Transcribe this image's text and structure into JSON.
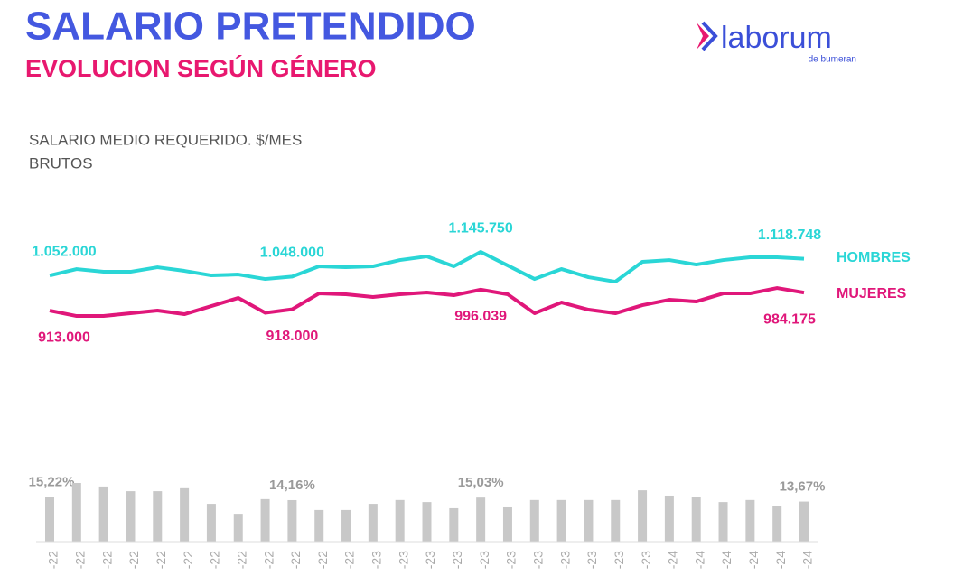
{
  "chart_data": {
    "type": "line",
    "title": "SALARIO PRETENDIDO",
    "subtitle": "EVOLUCION SEGÚN GÉNERO",
    "y_label": [
      "SALARIO MEDIO REQUERIDO. $/MES",
      "BRUTOS"
    ],
    "logo": {
      "name": "laborum",
      "tagline": "de bumeran"
    },
    "categories": [
      "-22",
      "-22",
      "-22",
      "-22",
      "-22",
      "-22",
      "-22",
      "-22",
      "-22",
      "-22",
      "-22",
      "-22",
      "-23",
      "-23",
      "-23",
      "-23",
      "-23",
      "-23",
      "-23",
      "-23",
      "-23",
      "-23",
      "-23",
      "-24",
      "-24",
      "-24",
      "-24",
      "-24",
      "-24"
    ],
    "ylim": [
      700000,
      1300000
    ],
    "series": [
      {
        "name": "HOMBRES",
        "color": "#2ad6d6",
        "values": [
          1052000,
          1077700,
          1067000,
          1067000,
          1084900,
          1070600,
          1052700,
          1056200,
          1038300,
          1048000,
          1088500,
          1084900,
          1088500,
          1113500,
          1127900,
          1088500,
          1145750,
          1092000,
          1038300,
          1077700,
          1045500,
          1027600,
          1106400,
          1113500,
          1095600,
          1113500,
          1124300,
          1124300,
          1118748
        ],
        "value_labels": [
          "1.052.000",
          null,
          null,
          null,
          null,
          null,
          null,
          null,
          null,
          "1.048.000",
          null,
          null,
          null,
          null,
          null,
          null,
          "1.145.750",
          null,
          null,
          null,
          null,
          null,
          null,
          null,
          null,
          null,
          null,
          null,
          "1.118.748"
        ]
      },
      {
        "name": "MUJERES",
        "color": "#e0177a",
        "values": [
          913000,
          891500,
          891500,
          902300,
          913000,
          898700,
          930900,
          963100,
          904000,
          918000,
          981000,
          977500,
          966700,
          977500,
          984600,
          973900,
          996039,
          977500,
          902300,
          945200,
          916600,
          902300,
          934500,
          956000,
          948800,
          981000,
          981000,
          1002500,
          984175
        ],
        "value_labels": [
          "913.000",
          null,
          null,
          null,
          null,
          null,
          null,
          null,
          null,
          "918.000",
          null,
          null,
          null,
          null,
          null,
          null,
          "996.039",
          null,
          null,
          null,
          null,
          null,
          null,
          null,
          null,
          null,
          null,
          null,
          "984.175"
        ]
      }
    ],
    "bars": {
      "type": "bar",
      "color": "#c8c8c8",
      "ylim": [
        0,
        24
      ],
      "values": [
        15.22,
        20.0,
        18.8,
        17.2,
        17.2,
        18.2,
        12.9,
        9.5,
        14.5,
        14.16,
        10.8,
        10.8,
        12.9,
        14.2,
        13.5,
        11.4,
        15.03,
        11.7,
        14.2,
        14.2,
        14.2,
        14.2,
        17.5,
        15.7,
        15.1,
        13.5,
        14.2,
        12.3,
        13.67
      ],
      "value_labels": [
        "15,22%",
        null,
        null,
        null,
        null,
        null,
        null,
        null,
        null,
        "14,16%",
        null,
        null,
        null,
        null,
        null,
        null,
        "15,03%",
        null,
        null,
        null,
        null,
        null,
        null,
        null,
        null,
        null,
        null,
        null,
        "13,67%"
      ]
    }
  }
}
